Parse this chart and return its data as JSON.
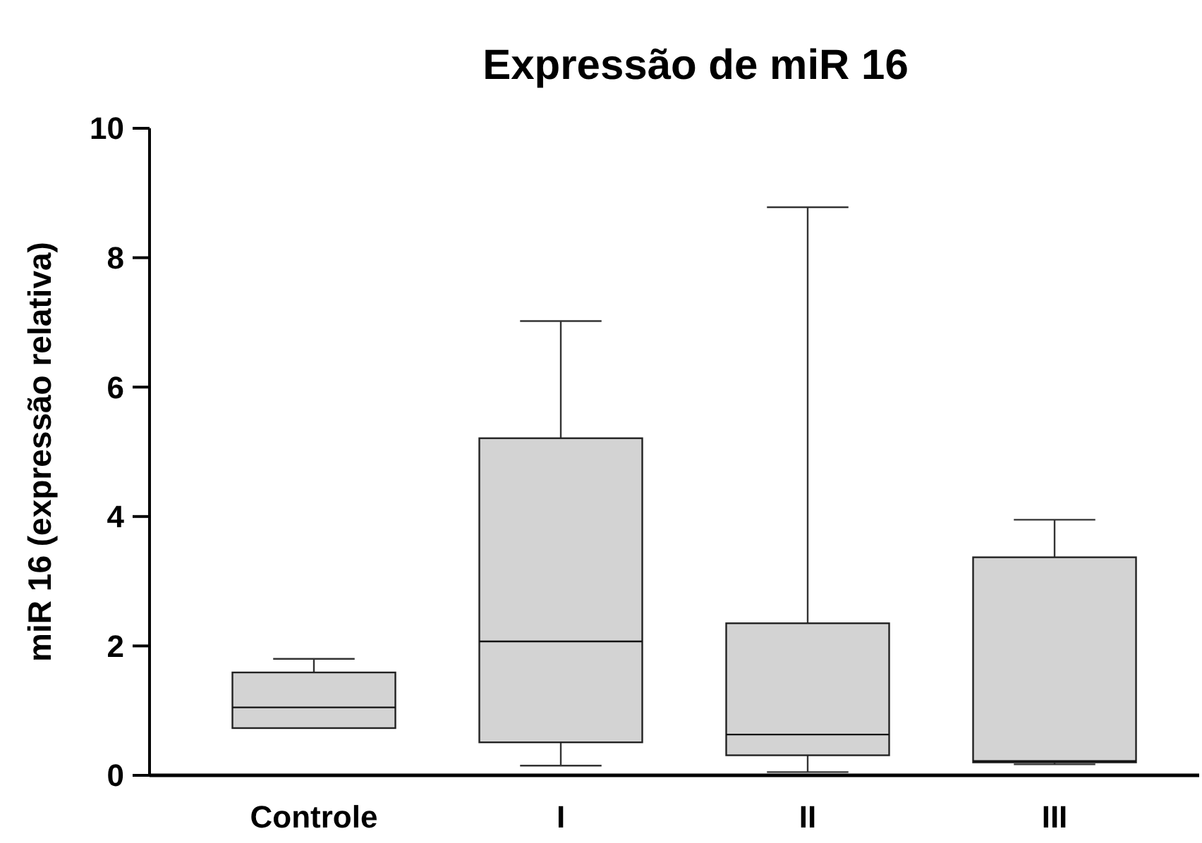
{
  "chart_data": {
    "type": "box",
    "title": "Expressão de miR 16",
    "ylabel": "miR 16 (expressão relativa)",
    "categories": [
      "Controle",
      "I",
      "II",
      "III"
    ],
    "boxes": [
      {
        "low": 0.73,
        "q1": 0.73,
        "median": 1.05,
        "q3": 1.59,
        "high": 1.8
      },
      {
        "low": 0.15,
        "q1": 0.51,
        "median": 2.07,
        "q3": 5.21,
        "high": 7.02
      },
      {
        "low": 0.05,
        "q1": 0.31,
        "median": 0.63,
        "q3": 2.35,
        "high": 8.78
      },
      {
        "low": 0.17,
        "q1": 0.2,
        "median": 0.22,
        "q3": 3.37,
        "high": 3.95
      }
    ],
    "color": "#d3d3d3",
    "ylim": [
      0,
      10
    ],
    "yticks": [
      0,
      2,
      4,
      6,
      8,
      10
    ],
    "grid": false
  }
}
